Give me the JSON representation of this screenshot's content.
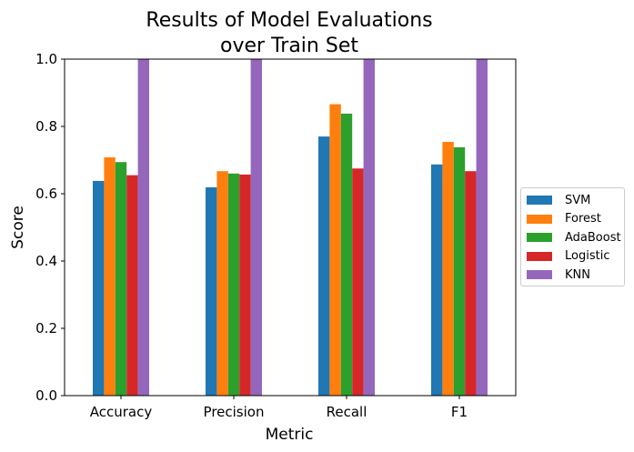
{
  "chart_data": {
    "type": "bar",
    "title": "Results of Model Evaluations\nover Train Set",
    "xlabel": "Metric",
    "ylabel": "Score",
    "categories": [
      "Accuracy",
      "Precision",
      "Recall",
      "F1"
    ],
    "ylim": [
      0,
      1.0
    ],
    "yticks": [
      "0.0",
      "0.2",
      "0.4",
      "0.6",
      "0.8",
      "1.0"
    ],
    "grid": false,
    "legend_position": "right",
    "series": [
      {
        "name": "SVM",
        "color": "#1f77b4",
        "values": [
          0.638,
          0.619,
          0.77,
          0.687
        ]
      },
      {
        "name": "Forest",
        "color": "#ff7f0e",
        "values": [
          0.708,
          0.667,
          0.866,
          0.754
        ]
      },
      {
        "name": "AdaBoost",
        "color": "#2ca02c",
        "values": [
          0.694,
          0.66,
          0.838,
          0.738
        ]
      },
      {
        "name": "Logistic",
        "color": "#d62728",
        "values": [
          0.655,
          0.657,
          0.675,
          0.667
        ]
      },
      {
        "name": "KNN",
        "color": "#9467bd",
        "values": [
          1.0,
          1.0,
          1.0,
          1.0
        ]
      }
    ]
  }
}
